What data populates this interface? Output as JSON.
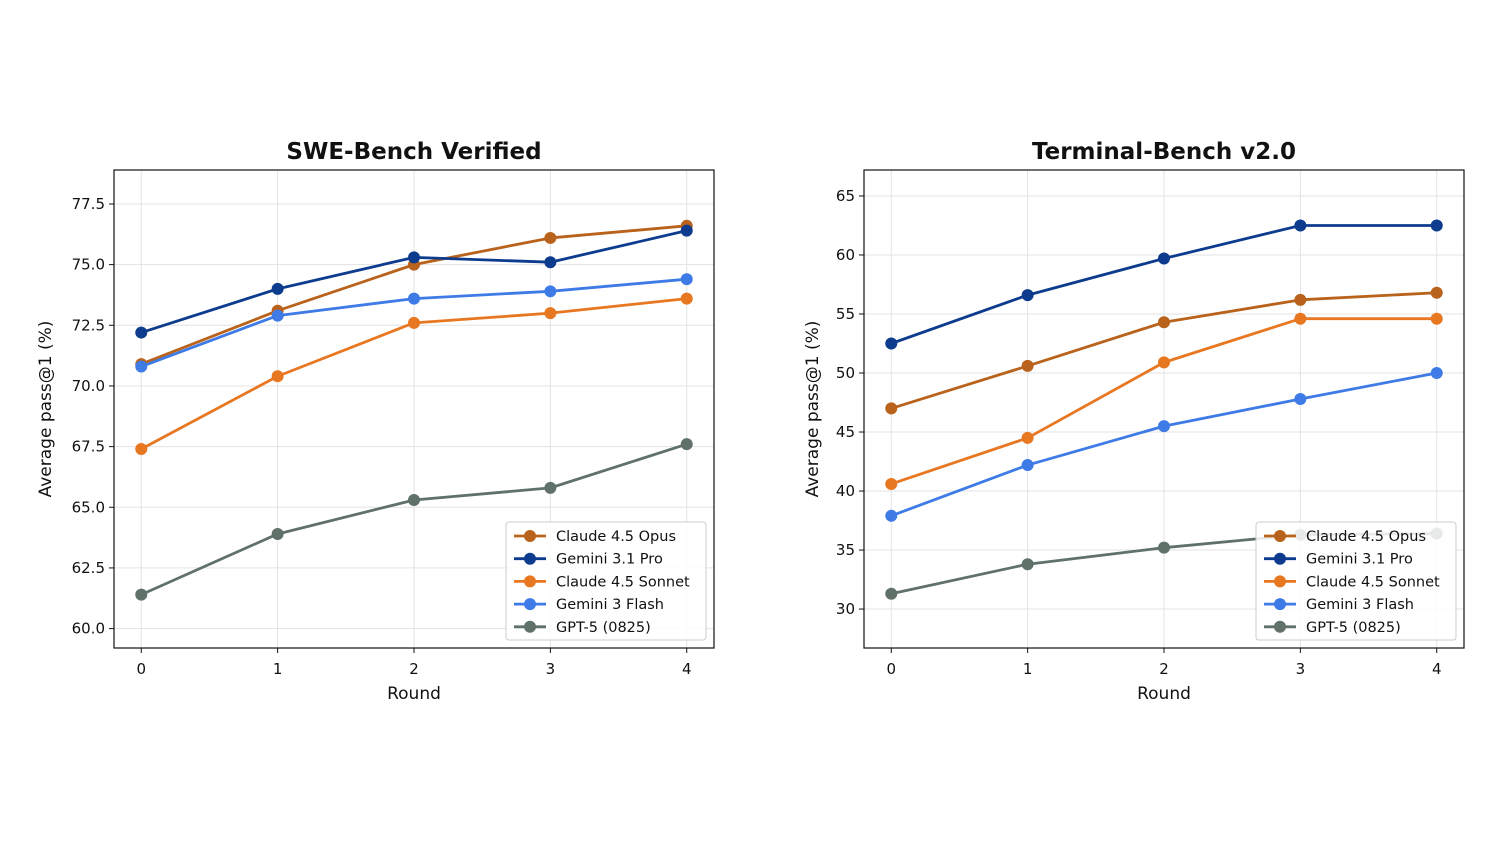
{
  "chart_data": [
    {
      "type": "line",
      "title": "SWE-Bench Verified",
      "xlabel": "Round",
      "ylabel": "Average pass@1 (%)",
      "x": [
        0,
        1,
        2,
        3,
        4
      ],
      "xticks": [
        "0",
        "1",
        "2",
        "3",
        "4"
      ],
      "xlim": [
        -0.2,
        4.2
      ],
      "ylim": [
        59.2,
        78.9
      ],
      "yticks": [
        "60.0",
        "62.5",
        "65.0",
        "67.5",
        "70.0",
        "72.5",
        "75.0",
        "77.5"
      ],
      "grid": true,
      "legend_position": "bottom-right",
      "series": [
        {
          "name": "Claude 4.5 Opus",
          "color": "#B8621B",
          "values": [
            70.9,
            73.1,
            75.0,
            76.1,
            76.6
          ]
        },
        {
          "name": "Gemini 3.1 Pro",
          "color": "#0D3B8E",
          "values": [
            72.2,
            74.0,
            75.3,
            75.1,
            76.4
          ]
        },
        {
          "name": "Claude 4.5 Sonnet",
          "color": "#E87722",
          "values": [
            67.4,
            70.4,
            72.6,
            73.0,
            73.6
          ]
        },
        {
          "name": "Gemini 3 Flash",
          "color": "#3E7BE6",
          "values": [
            70.8,
            72.9,
            73.6,
            73.9,
            74.4
          ]
        },
        {
          "name": "GPT-5 (0825)",
          "color": "#5F7168",
          "values": [
            61.4,
            63.9,
            65.3,
            65.8,
            67.6
          ]
        }
      ]
    },
    {
      "type": "line",
      "title": "Terminal-Bench v2.0",
      "xlabel": "Round",
      "ylabel": "Average pass@1 (%)",
      "x": [
        0,
        1,
        2,
        3,
        4
      ],
      "xticks": [
        "0",
        "1",
        "2",
        "3",
        "4"
      ],
      "xlim": [
        -0.2,
        4.2
      ],
      "ylim": [
        26.7,
        67.2
      ],
      "yticks": [
        "30",
        "35",
        "40",
        "45",
        "50",
        "55",
        "60",
        "65"
      ],
      "grid": true,
      "legend_position": "bottom-right",
      "series": [
        {
          "name": "Claude 4.5 Opus",
          "color": "#B8621B",
          "values": [
            47.0,
            50.6,
            54.3,
            56.2,
            56.8
          ]
        },
        {
          "name": "Gemini 3.1 Pro",
          "color": "#0D3B8E",
          "values": [
            52.5,
            56.6,
            59.7,
            62.5,
            62.5
          ]
        },
        {
          "name": "Claude 4.5 Sonnet",
          "color": "#E87722",
          "values": [
            40.6,
            44.5,
            50.9,
            54.6,
            54.6
          ]
        },
        {
          "name": "Gemini 3 Flash",
          "color": "#3E7BE6",
          "values": [
            37.9,
            42.2,
            45.5,
            47.8,
            50.0
          ]
        },
        {
          "name": "GPT-5 (0825)",
          "color": "#5F7168",
          "values": [
            31.3,
            33.8,
            35.2,
            36.3,
            36.4
          ]
        }
      ]
    }
  ]
}
